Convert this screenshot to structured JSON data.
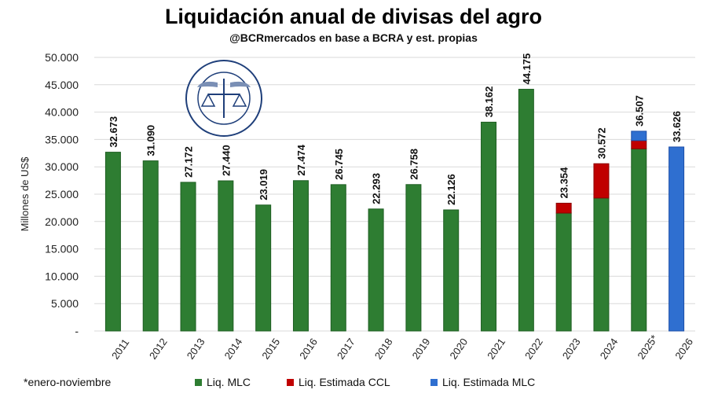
{
  "chart_data": {
    "type": "bar",
    "stacked": true,
    "title": "Liquidación anual de divisas del agro",
    "subtitle": "@BCRmercados en base a BCRA y est. propias",
    "ylabel": "Millones de US$",
    "xlabel": "",
    "ylim": [
      0,
      50000
    ],
    "yticks": [
      "-",
      "5.000",
      "10.000",
      "15.000",
      "20.000",
      "25.000",
      "30.000",
      "35.000",
      "40.000",
      "45.000",
      "50.000"
    ],
    "grid": true,
    "legend_position": "bottom",
    "categories": [
      "2011",
      "2012",
      "2013",
      "2014",
      "2015",
      "2016",
      "2017",
      "2018",
      "2019",
      "2020",
      "2021",
      "2022",
      "2023",
      "2024",
      "2025*",
      "2026"
    ],
    "series": [
      {
        "name": "Liq. MLC",
        "color": "#2e7d32",
        "values": [
          32673,
          31090,
          27172,
          27440,
          23019,
          27474,
          26745,
          22293,
          26758,
          22126,
          38162,
          44175,
          21550,
          24300,
          33300,
          0
        ]
      },
      {
        "name": "Liq. Estimada CCL",
        "color": "#c00000",
        "values": [
          0,
          0,
          0,
          0,
          0,
          0,
          0,
          0,
          0,
          0,
          0,
          0,
          1804,
          6272,
          1500,
          0
        ]
      },
      {
        "name": "Liq. Estimada MLC",
        "color": "#2f6fd0",
        "values": [
          0,
          0,
          0,
          0,
          0,
          0,
          0,
          0,
          0,
          0,
          0,
          0,
          0,
          0,
          1707,
          33626
        ]
      }
    ],
    "data_labels": [
      "32.673",
      "31.090",
      "27.172",
      "27.440",
      "23.019",
      "27.474",
      "26.745",
      "22.293",
      "26.758",
      "22.126",
      "38.162",
      "44.175",
      "23.354",
      "30.572",
      "36.507",
      "33.626"
    ],
    "totals": [
      32673,
      31090,
      27172,
      27440,
      23019,
      27474,
      26745,
      22293,
      26758,
      22126,
      38162,
      44175,
      23354,
      30572,
      36507,
      33626
    ],
    "footnote": "*enero-noviembre"
  },
  "logo_text": "BOLSA DE COMERCIO DE ROSARIO"
}
